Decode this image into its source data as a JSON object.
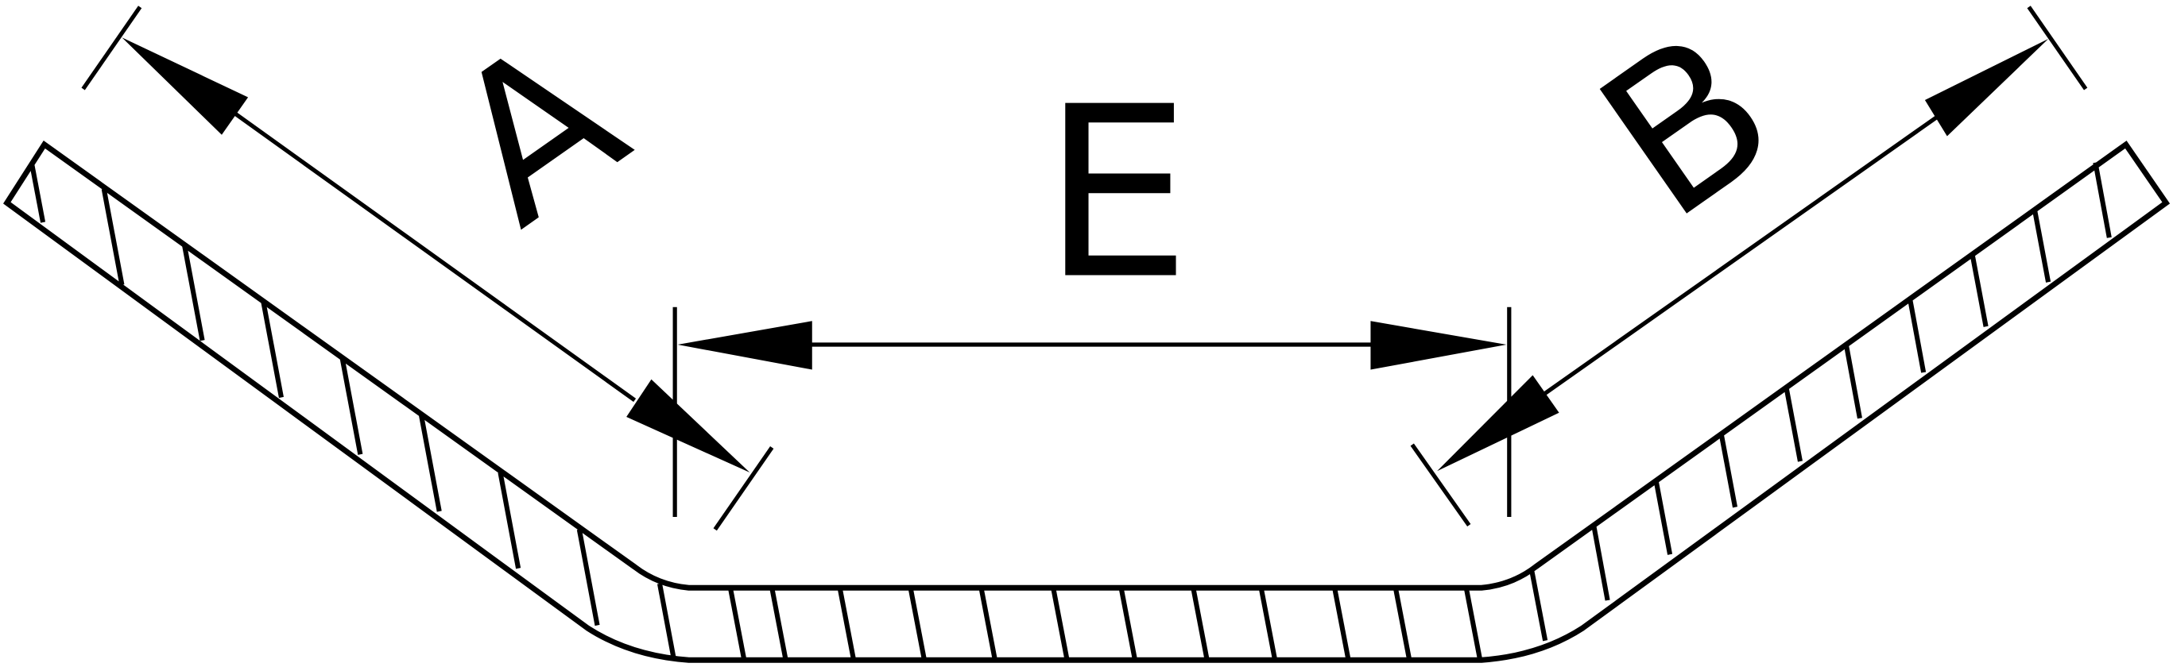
{
  "labels": {
    "a": "A",
    "b": "B",
    "e": "E"
  },
  "colors": {
    "stroke": "#000000",
    "background": "#ffffff"
  }
}
